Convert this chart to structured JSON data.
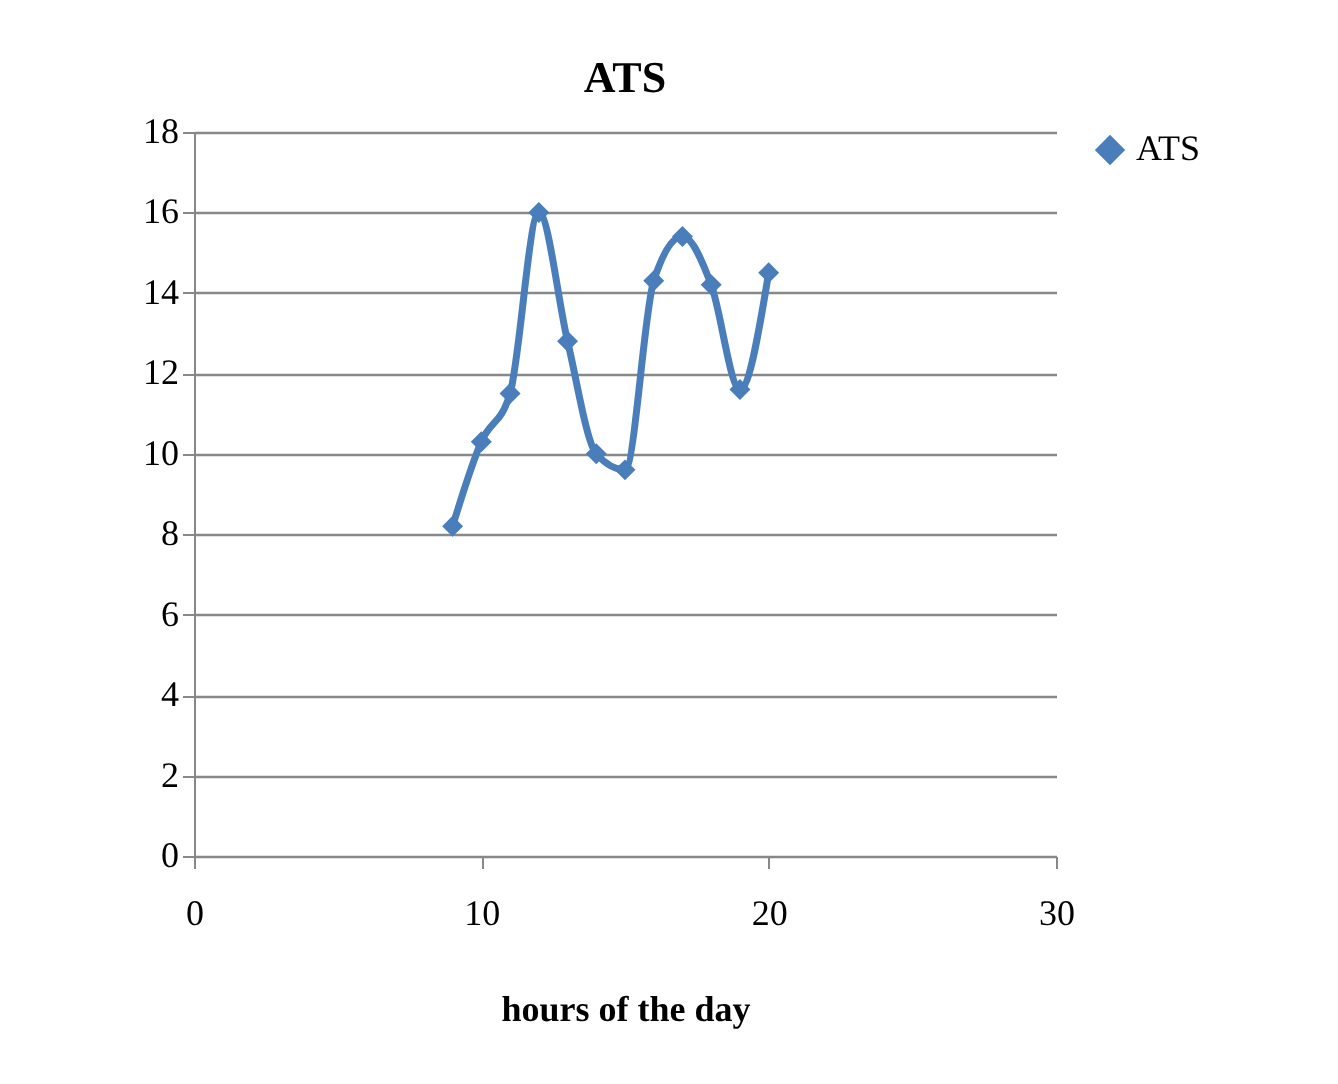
{
  "chart_data": {
    "type": "line",
    "title": "ATS",
    "xlabel": "hours of the day",
    "x": [
      9,
      10,
      11,
      12,
      13,
      14,
      15,
      16,
      17,
      18,
      19,
      20
    ],
    "series": [
      {
        "name": "ATS",
        "color": "#4a7ebb",
        "values": [
          8.2,
          10.3,
          11.5,
          16.0,
          12.8,
          10.0,
          9.6,
          14.3,
          15.4,
          14.2,
          11.6,
          14.5
        ]
      }
    ],
    "xlim": [
      0,
      30
    ],
    "xticks": [
      0,
      10,
      20,
      30
    ],
    "ylim": [
      0,
      18
    ],
    "yticks": [
      0,
      2,
      4,
      6,
      8,
      10,
      12,
      14,
      16,
      18
    ],
    "grid": "y",
    "legend": "right",
    "marker": "diamond",
    "line_style": "solid"
  }
}
